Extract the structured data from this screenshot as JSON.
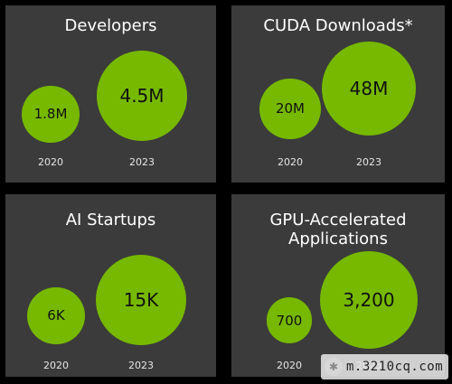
{
  "colors": {
    "background": "#000000",
    "panel": "#3b3b3b",
    "bubble": "#76b900",
    "title_text": "#ffffff",
    "bubble_text": "#111111",
    "year_text": "#e6e6e6"
  },
  "chart_data": [
    {
      "type": "bubble",
      "title": "Developers",
      "categories": [
        "2020",
        "2023"
      ],
      "values": [
        1.8,
        4.5
      ],
      "value_labels": [
        "1.8M",
        "4.5M"
      ],
      "unit": "M"
    },
    {
      "type": "bubble",
      "title": "CUDA Downloads*",
      "categories": [
        "2020",
        "2023"
      ],
      "values": [
        20,
        48
      ],
      "value_labels": [
        "20M",
        "48M"
      ],
      "unit": "M"
    },
    {
      "type": "bubble",
      "title": "AI Startups",
      "categories": [
        "2020",
        "2023"
      ],
      "values": [
        6,
        15
      ],
      "value_labels": [
        "6K",
        "15K"
      ],
      "unit": "K"
    },
    {
      "type": "bubble",
      "title": "GPU-Accelerated\nApplications",
      "categories": [
        "2020",
        "2023"
      ],
      "values": [
        700,
        3200
      ],
      "value_labels": [
        "700",
        "3,200"
      ],
      "unit": ""
    }
  ],
  "watermark": {
    "text": "m.3210cq.com"
  }
}
